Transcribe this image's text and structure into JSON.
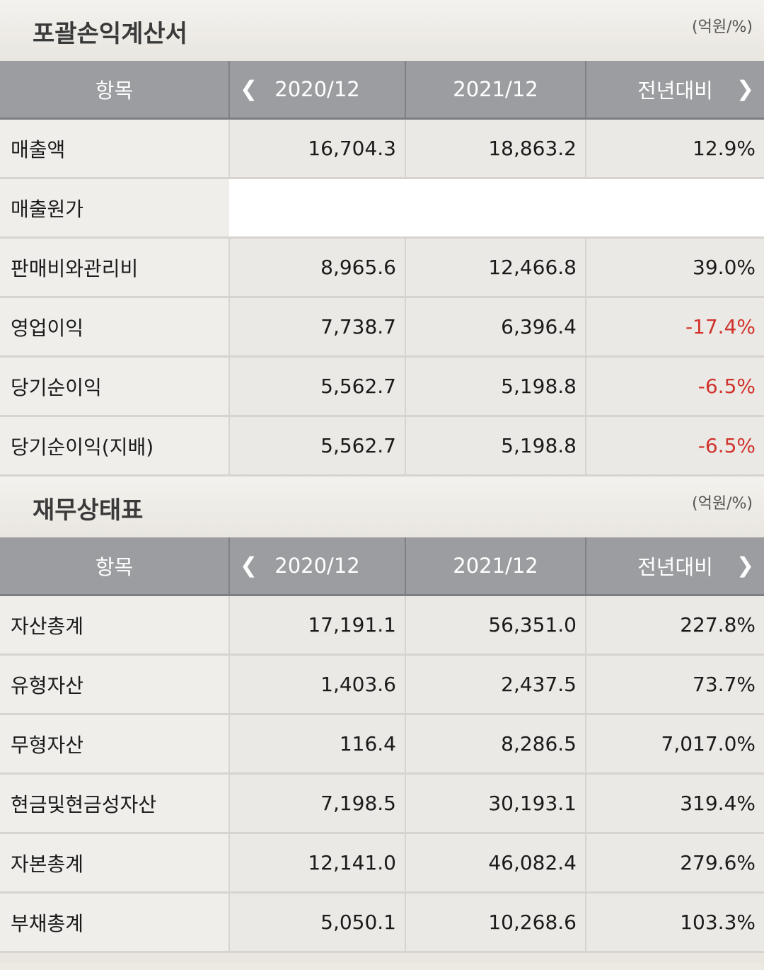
{
  "income": {
    "title": "포괄손익계산서",
    "unit": "(억원/%)",
    "headers": {
      "item": "항목",
      "y1": "2020/12",
      "y2": "2021/12",
      "yoy": "전년대비"
    },
    "rows": [
      {
        "label": "매출액",
        "y1": "16,704.3",
        "y2": "18,863.2",
        "yoy": "12.9%"
      },
      {
        "label": "매출원가",
        "y1": "",
        "y2": "",
        "yoy": ""
      },
      {
        "label": "판매비와관리비",
        "y1": "8,965.6",
        "y2": "12,466.8",
        "yoy": "39.0%"
      },
      {
        "label": "영업이익",
        "y1": "7,738.7",
        "y2": "6,396.4",
        "yoy": "-17.4%"
      },
      {
        "label": "당기순이익",
        "y1": "5,562.7",
        "y2": "5,198.8",
        "yoy": "-6.5%"
      },
      {
        "label": "당기순이익(지배)",
        "y1": "5,562.7",
        "y2": "5,198.8",
        "yoy": "-6.5%"
      }
    ]
  },
  "balance": {
    "title": "재무상태표",
    "unit": "(억원/%)",
    "headers": {
      "item": "항목",
      "y1": "2020/12",
      "y2": "2021/12",
      "yoy": "전년대비"
    },
    "rows": [
      {
        "label": "자산총계",
        "y1": "17,191.1",
        "y2": "56,351.0",
        "yoy": "227.8%"
      },
      {
        "label": "유형자산",
        "y1": "1,403.6",
        "y2": "2,437.5",
        "yoy": "73.7%"
      },
      {
        "label": "무형자산",
        "y1": "116.4",
        "y2": "8,286.5",
        "yoy": "7,017.0%"
      },
      {
        "label": "현금및현금성자산",
        "y1": "7,198.5",
        "y2": "30,193.1",
        "yoy": "319.4%"
      },
      {
        "label": "자본총계",
        "y1": "12,141.0",
        "y2": "46,082.4",
        "yoy": "279.6%"
      },
      {
        "label": "부채총계",
        "y1": "5,050.1",
        "y2": "10,268.6",
        "yoy": "103.3%"
      }
    ]
  },
  "icons": {
    "prev": "chevron-left-icon",
    "next": "chevron-right-icon"
  },
  "colors": {
    "negative": "#d0322c",
    "header_bg": "#9b9da0"
  }
}
